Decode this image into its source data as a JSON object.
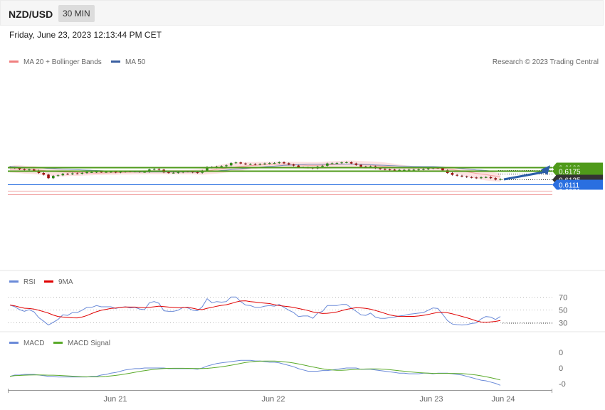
{
  "header": {
    "pair": "NZD/USD",
    "period": "30 MIN",
    "datetime": "Friday, June 23, 2023 12:13:44 PM CET"
  },
  "main": {
    "legend": [
      {
        "label": "MA 20 + Bollinger Bands",
        "color": "#f08080"
      },
      {
        "label": "MA 50",
        "color": "#3a5fa0"
      }
    ],
    "credit": "Research © 2023 Trading Central",
    "levels": [
      {
        "value": "0.6193",
        "color": "#4f9a1a",
        "style": "pill"
      },
      {
        "value": "0.6175",
        "color": "#4f9a1a",
        "style": "pill"
      },
      {
        "value": "0.6135",
        "color": "#333333",
        "style": "pill"
      },
      {
        "value": "0.6111",
        "color": "#2a6fe0",
        "style": "pill"
      },
      {
        "value": "0.6081",
        "color": "#e00000",
        "style": "text"
      },
      {
        "value": "0.6064",
        "color": "#e00000",
        "style": "text"
      }
    ]
  },
  "rsi": {
    "legend": [
      {
        "label": "RSI",
        "color": "#6a8ad8"
      },
      {
        "label": "9MA",
        "color": "#e00000"
      }
    ],
    "ticks": [
      "70",
      "50",
      "30"
    ]
  },
  "macd": {
    "legend": [
      {
        "label": "MACD",
        "color": "#6a8ad8"
      },
      {
        "label": "MACD Signal",
        "color": "#5aaa2a"
      }
    ],
    "ticks": [
      "0",
      "0",
      "-0"
    ]
  },
  "xaxis": {
    "labels": [
      "Jun 21",
      "Jun 22",
      "Jun 23",
      "Jun 24"
    ]
  },
  "chart_data": {
    "type": "candlestick",
    "close": [
      0.6192,
      0.619,
      0.6184,
      0.6181,
      0.6183,
      0.6178,
      0.6166,
      0.6158,
      0.6141,
      0.6152,
      0.6155,
      0.6162,
      0.616,
      0.6164,
      0.6163,
      0.6166,
      0.617,
      0.617,
      0.6172,
      0.6171,
      0.6171,
      0.6172,
      0.6169,
      0.6172,
      0.6174,
      0.6173,
      0.6174,
      0.6171,
      0.6171,
      0.6183,
      0.6185,
      0.6182,
      0.6169,
      0.6167,
      0.6167,
      0.6169,
      0.6174,
      0.6173,
      0.6169,
      0.6167,
      0.6177,
      0.6195,
      0.6192,
      0.6197,
      0.6199,
      0.6203,
      0.6214,
      0.6217,
      0.6212,
      0.6208,
      0.6209,
      0.6207,
      0.6209,
      0.6212,
      0.6214,
      0.6214,
      0.6218,
      0.6213,
      0.6207,
      0.6202,
      0.6193,
      0.6193,
      0.6192,
      0.6188,
      0.6197,
      0.6201,
      0.6212,
      0.6213,
      0.6214,
      0.6217,
      0.6218,
      0.6212,
      0.6205,
      0.6197,
      0.6195,
      0.6198,
      0.6189,
      0.6185,
      0.6183,
      0.6182,
      0.6181,
      0.6181,
      0.6181,
      0.6182,
      0.6182,
      0.6183,
      0.6184,
      0.6188,
      0.6191,
      0.619,
      0.6179,
      0.6166,
      0.6157,
      0.6153,
      0.6149,
      0.6146,
      0.6144,
      0.6141,
      0.6145,
      0.6146,
      0.6141,
      0.6134,
      0.6136
    ],
    "ma20": [
      0.6184,
      0.6185,
      0.6184,
      0.6184,
      0.6183,
      0.6182,
      0.618,
      0.6178,
      0.6175,
      0.6174,
      0.6172,
      0.6171,
      0.617,
      0.6169,
      0.6168,
      0.6167,
      0.6166,
      0.6166,
      0.6165,
      0.6166,
      0.6166,
      0.6167,
      0.6167,
      0.6168,
      0.6169,
      0.617,
      0.617,
      0.617,
      0.6171,
      0.6171,
      0.6171,
      0.6171,
      0.6171,
      0.617,
      0.617,
      0.617,
      0.617,
      0.617,
      0.617,
      0.6169,
      0.6172,
      0.6176,
      0.618,
      0.6183,
      0.6186,
      0.6189,
      0.6192,
      0.6195,
      0.6198,
      0.62,
      0.6202,
      0.6203,
      0.6205,
      0.6206,
      0.6207,
      0.6208,
      0.6209,
      0.6209,
      0.6208,
      0.6207,
      0.6205,
      0.6204,
      0.6203,
      0.6203,
      0.6203,
      0.6204,
      0.6205,
      0.6206,
      0.6207,
      0.6208,
      0.6209,
      0.6209,
      0.6208,
      0.6206,
      0.6205,
      0.6204,
      0.6202,
      0.62,
      0.6198,
      0.6196,
      0.6194,
      0.6192,
      0.6191,
      0.619,
      0.6189,
      0.6189,
      0.6189,
      0.6189,
      0.6188,
      0.6188,
      0.6187,
      0.6185,
      0.6182,
      0.6179,
      0.6176,
      0.6172,
      0.6168,
      0.6164,
      0.6161,
      0.6158,
      0.6154,
      0.6151,
      0.6148
    ],
    "ma50": [
      0.6197,
      0.6196,
      0.6195,
      0.6194,
      0.6193,
      0.6192,
      0.6191,
      0.619,
      0.6188,
      0.6187,
      0.6186,
      0.6185,
      0.6184,
      0.6183,
      0.6182,
      0.6181,
      0.618,
      0.6179,
      0.6178,
      0.6177,
      0.6176,
      0.6175,
      0.6174,
      0.6173,
      0.6172,
      0.6172,
      0.6171,
      0.6171,
      0.6171,
      0.6171,
      0.6171,
      0.6171,
      0.6171,
      0.6171,
      0.6171,
      0.6171,
      0.6171,
      0.6171,
      0.6171,
      0.6171,
      0.6172,
      0.6173,
      0.6175,
      0.6176,
      0.6178,
      0.618,
      0.6182,
      0.6184,
      0.6186,
      0.6188,
      0.619,
      0.6192,
      0.6194,
      0.6196,
      0.6198,
      0.6199,
      0.6201,
      0.6203,
      0.6204,
      0.6205,
      0.6206,
      0.6207,
      0.6208,
      0.6208,
      0.6208,
      0.6208,
      0.6209,
      0.6209,
      0.6209,
      0.6209,
      0.6209,
      0.6209,
      0.6208,
      0.6208,
      0.6207,
      0.6206,
      0.6205,
      0.6204,
      0.6203,
      0.6202,
      0.6201,
      0.62,
      0.6199,
      0.6199,
      0.6198,
      0.6198,
      0.6197,
      0.6197,
      0.6197,
      0.6196,
      0.6195,
      0.6193,
      0.6191,
      0.6189,
      0.6187,
      0.6185,
      0.6183,
      0.6181,
      0.618,
      0.6178,
      0.6176,
      0.6175,
      0.6175
    ],
    "bb_upper": [
      0.62,
      0.6203,
      0.6203,
      0.6201,
      0.62,
      0.6199,
      0.6196,
      0.6194,
      0.6191,
      0.6188,
      0.6186,
      0.6183,
      0.6181,
      0.618,
      0.6179,
      0.6178,
      0.6177,
      0.6177,
      0.6177,
      0.6177,
      0.6177,
      0.6177,
      0.6178,
      0.6178,
      0.6178,
      0.6178,
      0.6178,
      0.6178,
      0.6179,
      0.618,
      0.6181,
      0.6181,
      0.6182,
      0.6182,
      0.6182,
      0.6182,
      0.6182,
      0.6182,
      0.6183,
      0.6184,
      0.6187,
      0.6192,
      0.6197,
      0.6202,
      0.6207,
      0.6211,
      0.6215,
      0.6217,
      0.6218,
      0.6219,
      0.6219,
      0.6219,
      0.622,
      0.622,
      0.622,
      0.6221,
      0.6221,
      0.6221,
      0.6221,
      0.622,
      0.622,
      0.622,
      0.6219,
      0.6219,
      0.6219,
      0.622,
      0.6222,
      0.6223,
      0.6224,
      0.6225,
      0.6226,
      0.6226,
      0.6225,
      0.6224,
      0.6223,
      0.6222,
      0.6221,
      0.6219,
      0.6217,
      0.6214,
      0.6211,
      0.6207,
      0.6204,
      0.62,
      0.6197,
      0.6195,
      0.6195,
      0.6195,
      0.6196,
      0.6196,
      0.6197,
      0.6197,
      0.6196,
      0.6194,
      0.6191,
      0.6189,
      0.6186,
      0.6183,
      0.618,
      0.6177,
      0.6173,
      0.6168,
      0.6164
    ],
    "bb_lower": [
      0.6168,
      0.6167,
      0.6165,
      0.6163,
      0.6162,
      0.616,
      0.6158,
      0.6155,
      0.6152,
      0.6151,
      0.615,
      0.615,
      0.6151,
      0.6152,
      0.6152,
      0.6153,
      0.6154,
      0.6155,
      0.6156,
      0.6156,
      0.6157,
      0.6157,
      0.6157,
      0.6158,
      0.6158,
      0.6158,
      0.6159,
      0.6159,
      0.6159,
      0.616,
      0.616,
      0.616,
      0.616,
      0.6159,
      0.6159,
      0.6159,
      0.6159,
      0.6159,
      0.6159,
      0.6158,
      0.6157,
      0.6159,
      0.6161,
      0.6163,
      0.6165,
      0.6168,
      0.6171,
      0.6174,
      0.6177,
      0.618,
      0.6183,
      0.6186,
      0.6189,
      0.6191,
      0.6193,
      0.6194,
      0.6195,
      0.6196,
      0.6195,
      0.6193,
      0.6191,
      0.6188,
      0.6186,
      0.6185,
      0.6185,
      0.6186,
      0.6187,
      0.6188,
      0.6189,
      0.619,
      0.6191,
      0.6191,
      0.619,
      0.6188,
      0.6186,
      0.6184,
      0.6182,
      0.6179,
      0.6177,
      0.6175,
      0.6174,
      0.6174,
      0.6175,
      0.6176,
      0.6177,
      0.6178,
      0.6178,
      0.6178,
      0.6178,
      0.6177,
      0.6175,
      0.6171,
      0.6166,
      0.6161,
      0.6156,
      0.615,
      0.6145,
      0.6139,
      0.6134,
      0.613,
      0.6127,
      0.6125,
      0.6124
    ],
    "arrow": {
      "from": 0.6135,
      "to": 0.6193
    },
    "rsi_ticks": [
      70,
      50,
      30
    ],
    "x_labels": [
      "Jun 21",
      "Jun 22",
      "Jun 23",
      "Jun 24"
    ]
  }
}
